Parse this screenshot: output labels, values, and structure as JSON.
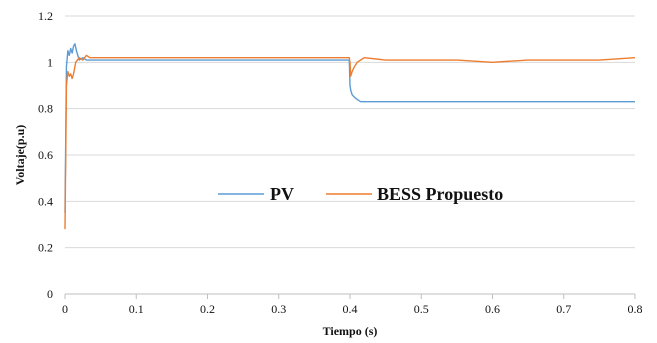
{
  "chart_data": {
    "type": "line",
    "title": "",
    "xlabel": "Tiempo (s)",
    "ylabel": "Voltaje(p.u)",
    "xlim": [
      0,
      0.8
    ],
    "ylim": [
      0,
      1.2
    ],
    "x_ticks": [
      0,
      0.1,
      0.2,
      0.3,
      0.4,
      0.5,
      0.6,
      0.7,
      0.8
    ],
    "x_tick_labels": [
      "0",
      "0.1",
      "0.2",
      "0.3",
      "0.4",
      "0.5",
      "0.6",
      "0.7",
      "0.8"
    ],
    "y_ticks": [
      0,
      0.2,
      0.4,
      0.6,
      0.8,
      1.0,
      1.2
    ],
    "y_tick_labels": [
      "0",
      "0.2",
      "0.4",
      "0.6",
      "0.8",
      "1",
      "1.2"
    ],
    "grid": "horizontal",
    "legend_position": "center",
    "series": [
      {
        "name": "PV",
        "color": "#5B9BD5",
        "x": [
          0,
          0.002,
          0.004,
          0.006,
          0.008,
          0.01,
          0.012,
          0.014,
          0.016,
          0.018,
          0.02,
          0.025,
          0.03,
          0.05,
          0.1,
          0.15,
          0.2,
          0.25,
          0.3,
          0.35,
          0.399,
          0.4,
          0.401,
          0.403,
          0.406,
          0.41,
          0.415,
          0.42,
          0.43,
          0.5,
          0.6,
          0.7,
          0.8
        ],
        "y": [
          0.35,
          0.98,
          1.05,
          1.03,
          1.06,
          1.04,
          1.07,
          1.08,
          1.05,
          1.03,
          1.01,
          1.02,
          1.01,
          1.01,
          1.01,
          1.01,
          1.01,
          1.01,
          1.01,
          1.01,
          1.01,
          0.9,
          0.88,
          0.86,
          0.85,
          0.84,
          0.83,
          0.83,
          0.83,
          0.83,
          0.83,
          0.83,
          0.83
        ]
      },
      {
        "name": "BESS Propuesto",
        "color": "#ED7D31",
        "x": [
          0,
          0.002,
          0.004,
          0.006,
          0.008,
          0.01,
          0.012,
          0.015,
          0.02,
          0.025,
          0.03,
          0.035,
          0.05,
          0.1,
          0.15,
          0.2,
          0.25,
          0.3,
          0.35,
          0.399,
          0.4,
          0.401,
          0.403,
          0.406,
          0.41,
          0.415,
          0.42,
          0.45,
          0.5,
          0.55,
          0.6,
          0.65,
          0.7,
          0.75,
          0.8
        ],
        "y": [
          0.28,
          0.9,
          0.96,
          0.94,
          0.95,
          0.93,
          0.95,
          1.0,
          1.02,
          1.01,
          1.03,
          1.02,
          1.02,
          1.02,
          1.02,
          1.02,
          1.02,
          1.02,
          1.02,
          1.02,
          1.0,
          0.94,
          0.96,
          0.98,
          1.0,
          1.01,
          1.02,
          1.01,
          1.01,
          1.01,
          1.0,
          1.01,
          1.01,
          1.01,
          1.02
        ]
      }
    ]
  }
}
